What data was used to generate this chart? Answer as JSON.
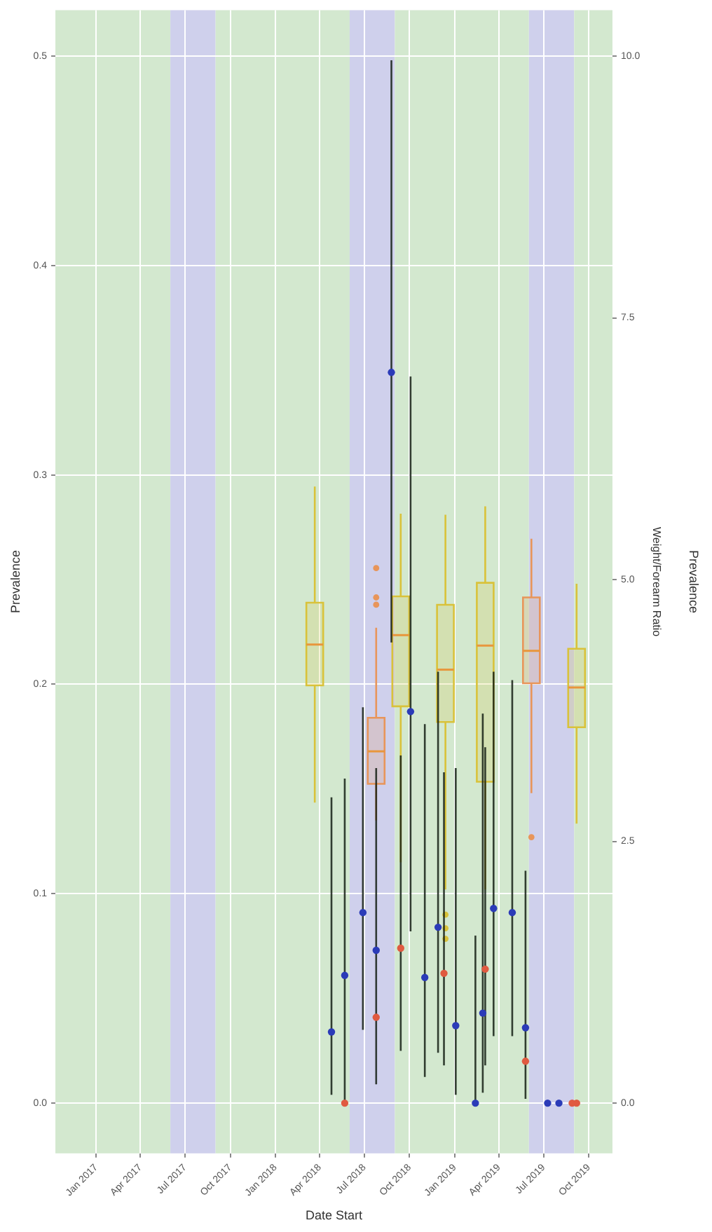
{
  "chart_data": {
    "type": "scatter",
    "xlabel": "Date Start",
    "ylabel": "Prevalence",
    "y2label": "Weight/Forearm Ratio",
    "y3label": "Prevalence",
    "xlim": [
      "2016-10-10",
      "2019-11-18"
    ],
    "xticks": [
      {
        "value": "2017-01",
        "label": "Jan 2017"
      },
      {
        "value": "2017-04",
        "label": "Apr 2017"
      },
      {
        "value": "2017-07",
        "label": "Jul 2017"
      },
      {
        "value": "2017-10",
        "label": "Oct 2017"
      },
      {
        "value": "2018-01",
        "label": "Jan 2018"
      },
      {
        "value": "2018-04",
        "label": "Apr 2018"
      },
      {
        "value": "2018-07",
        "label": "Jul 2018"
      },
      {
        "value": "2018-10",
        "label": "Oct 2018"
      },
      {
        "value": "2019-01",
        "label": "Jan 2019"
      },
      {
        "value": "2019-04",
        "label": "Apr 2019"
      },
      {
        "value": "2019-07",
        "label": "Jul 2019"
      },
      {
        "value": "2019-10",
        "label": "Oct 2019"
      }
    ],
    "ylim": [
      -0.024,
      0.522
    ],
    "yticks": [
      {
        "value": 0,
        "label": "0.0"
      },
      0.1,
      0.2,
      0.3,
      0.4,
      0.5
    ],
    "y2lim": [
      -0.48,
      10.44
    ],
    "y2ticks": [
      {
        "value": 0,
        "label": "0.0"
      },
      2.5,
      {
        "value": 5,
        "label": "5.0"
      },
      7.5,
      {
        "value": 10,
        "label": "10.0"
      }
    ],
    "grid": true,
    "legend": false,
    "marker": "circle",
    "bands": [
      {
        "axis": "x",
        "from": "2016-10-10",
        "to": "2017-06",
        "color": "#d3e8cf"
      },
      {
        "axis": "x",
        "from": "2017-06",
        "to": "2017-09",
        "color": "#cfd0ec"
      },
      {
        "axis": "x",
        "from": "2017-09",
        "to": "2018-06",
        "color": "#d3e8cf"
      },
      {
        "axis": "x",
        "from": "2018-06",
        "to": "2018-09",
        "color": "#cfd0ec"
      },
      {
        "axis": "x",
        "from": "2018-09",
        "to": "2019-06",
        "color": "#d3e8cf"
      },
      {
        "axis": "x",
        "from": "2019-06",
        "to": "2019-09",
        "color": "#cfd0ec"
      },
      {
        "axis": "x",
        "from": "2019-09",
        "to": "2019-11-18",
        "color": "#d3e8cf"
      }
    ],
    "series": [
      {
        "type": "box",
        "axis": "y2",
        "color": "#d9c23a",
        "x": [
          "2018-03-22",
          "2018-09-13",
          "2018-12-13",
          "2019-03-04",
          "2019-09-06"
        ],
        "boxes": [
          {
            "low": 2.87,
            "q1": 3.99,
            "median": 4.38,
            "q3": 4.78,
            "high": 5.89
          },
          {
            "low": 2.3,
            "q1": 3.79,
            "median": 4.47,
            "q3": 4.84,
            "high": 5.63
          },
          {
            "low": 2.04,
            "q1": 3.64,
            "median": 4.14,
            "q3": 4.76,
            "high": 5.62,
            "outliers": [
              1.8,
              1.67,
              1.57
            ]
          },
          {
            "low": 2.04,
            "q1": 3.07,
            "median": 4.37,
            "q3": 4.97,
            "high": 5.7
          },
          {
            "low": 2.67,
            "q1": 3.59,
            "median": 3.97,
            "q3": 4.34,
            "high": 4.96
          }
        ]
      },
      {
        "type": "box",
        "axis": "y2",
        "color": "#e8955a",
        "x": [
          "2018-07-25",
          "2019-06-06"
        ],
        "boxes": [
          {
            "low": 2.7,
            "q1": 3.05,
            "median": 3.36,
            "q3": 3.68,
            "high": 4.54,
            "outliers": [
              5.11,
              4.83,
              4.76
            ]
          },
          {
            "low": 2.96,
            "q1": 4.01,
            "median": 4.32,
            "q3": 4.83,
            "high": 5.39,
            "outliers": [
              2.54
            ]
          }
        ]
      },
      {
        "type": "scatter",
        "color": "#2b3bb8",
        "x": [
          "2018-04-25",
          "2018-05-22",
          "2018-06-28",
          "2018-07-25",
          "2018-08-25",
          "2018-10-03",
          "2018-11-01",
          "2018-11-28",
          "2019-01-03",
          "2019-02-12",
          "2019-02-27",
          "2019-03-21",
          "2019-04-28",
          "2019-05-25",
          "2019-07-09",
          "2019-08-01"
        ],
        "values": [
          0.034,
          0.061,
          0.091,
          0.073,
          0.349,
          0.187,
          0.06,
          0.084,
          0.037,
          0.0,
          0.043,
          0.093,
          0.091,
          0.036,
          0.0,
          0.0
        ],
        "errors": [
          [
            0.004,
            0.146
          ],
          [
            0.0,
            0.155
          ],
          [
            0.035,
            0.189
          ],
          [
            0.009,
            0.16
          ],
          [
            0.22,
            0.498
          ],
          [
            0.082,
            0.347
          ],
          [
            0.0125,
            0.181
          ],
          [
            0.024,
            0.206
          ],
          [
            0.004,
            0.16
          ],
          [
            0.0,
            0.08
          ],
          [
            0.005,
            0.186
          ],
          [
            0.032,
            0.206
          ],
          [
            0.032,
            0.202
          ],
          [
            0.002,
            0.111
          ],
          null,
          null
        ]
      },
      {
        "type": "scatter",
        "color": "#e05a40",
        "x": [
          "2018-05-22",
          "2018-07-25",
          "2018-09-13",
          "2018-12-10",
          "2019-03-04",
          "2019-05-25",
          "2019-08-28",
          "2019-09-06"
        ],
        "values": [
          0.0,
          0.041,
          0.074,
          0.062,
          0.064,
          0.02,
          0.0,
          0.0
        ],
        "errors": [
          null,
          null,
          [
            0.025,
            0.166
          ],
          [
            0.018,
            0.158
          ],
          [
            0.018,
            0.17
          ],
          null,
          null,
          null
        ]
      }
    ]
  }
}
